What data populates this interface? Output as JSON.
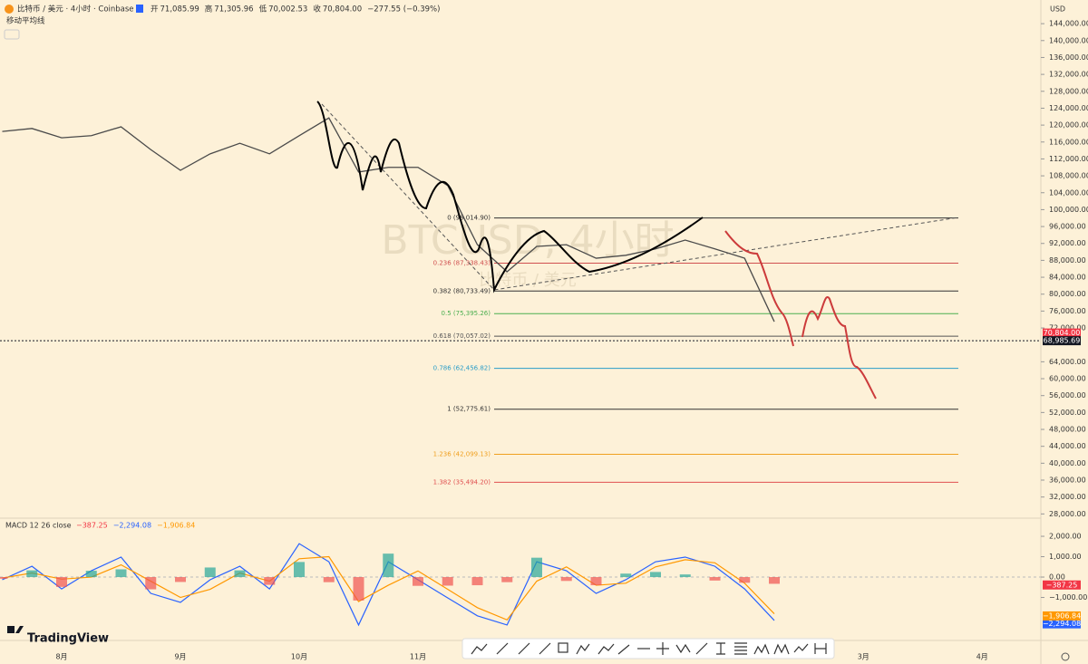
{
  "header": {
    "symbol": "比特币 / 美元 · 4小时 · Coinbase",
    "ohlc": [
      {
        "label": "开",
        "value": "71,085.99"
      },
      {
        "label": "高",
        "value": "71,305.96"
      },
      {
        "label": "低",
        "value": "70,002.53"
      },
      {
        "label": "收",
        "value": "70,804.00"
      }
    ],
    "change": "−277.55 (−0.39%)",
    "indicator": "移动平均线",
    "currency": "USD"
  },
  "watermark": {
    "line1": "BTCUSD, 4小时",
    "line2": "比特币 / 美元"
  },
  "logo": "TradingView",
  "chart_data": [
    {
      "type": "line",
      "color": "#4a4a4a",
      "categories": [
        null,
        null,
        "8月",
        null,
        null,
        null,
        "9月",
        null,
        null,
        null,
        "10月",
        null,
        null,
        null,
        "11月",
        null,
        null,
        null,
        null,
        null,
        null,
        null,
        null,
        null,
        null,
        null,
        null,
        null,
        null,
        "3月",
        null,
        null,
        null,
        "4月",
        null,
        null
      ],
      "values": [
        118500,
        119200,
        117000,
        117500,
        119600,
        114200,
        109300,
        113200,
        115700,
        113200,
        117500,
        121700,
        108900,
        110000,
        110000,
        105700,
        91700,
        85300,
        91300,
        91700,
        88500,
        89200,
        90700,
        92800,
        90700,
        88500,
        73500,
        null,
        null,
        null,
        null,
        null,
        null,
        null,
        null,
        null
      ],
      "ylim": [
        27000,
        149600
      ],
      "yticks": [
        {
          "value": 28000,
          "label": "28,000.00"
        },
        {
          "value": 32000,
          "label": "32,000.00"
        },
        {
          "value": 36000,
          "label": "36,000.00"
        },
        {
          "value": 40000,
          "label": "40,000.00"
        },
        {
          "value": 44000,
          "label": "44,000.00"
        },
        {
          "value": 48000,
          "label": "48,000.00"
        },
        {
          "value": 52000,
          "label": "52,000.00"
        },
        {
          "value": 56000,
          "label": "56,000.00"
        },
        {
          "value": 60000,
          "label": "60,000.00"
        },
        {
          "value": 64000,
          "label": "64,000.00"
        },
        {
          "value": 72000,
          "label": "72,000.00"
        },
        {
          "value": 76000,
          "label": "76,000.00"
        },
        {
          "value": 80000,
          "label": "80,000.00"
        },
        {
          "value": 84000,
          "label": "84,000.00"
        },
        {
          "value": 88000,
          "label": "88,000.00"
        },
        {
          "value": 92000,
          "label": "92,000.00"
        },
        {
          "value": 96000,
          "label": "96,000.00"
        },
        {
          "value": 100000,
          "label": "100,000.00"
        },
        {
          "value": 104000,
          "label": "104,000.00"
        },
        {
          "value": 108000,
          "label": "108,000.00"
        },
        {
          "value": 112000,
          "label": "112,000.00"
        },
        {
          "value": 116000,
          "label": "116,000.00"
        },
        {
          "value": 120000,
          "label": "120,000.00"
        },
        {
          "value": 124000,
          "label": "124,000.00"
        },
        {
          "value": 128000,
          "label": "128,000.00"
        },
        {
          "value": 132000,
          "label": "132,000.00"
        },
        {
          "value": 136000,
          "label": "136,000.00"
        },
        {
          "value": 140000,
          "label": "140,000.00"
        },
        {
          "value": 144000,
          "label": "144,000.00"
        }
      ],
      "fib_levels": [
        {
          "label": "0 (98,014.90)",
          "value": 98014.9,
          "color": "#333333"
        },
        {
          "label": "0.236 (87,338.43)",
          "value": 87338.43,
          "color": "#d05050"
        },
        {
          "label": "0.382 (80,733.49)",
          "value": 80733.49,
          "color": "#333333"
        },
        {
          "label": "0.5 (75,395.26)",
          "value": 75395.26,
          "color": "#4caf50"
        },
        {
          "label": "0.618 (70,057.02)",
          "value": 70057.02,
          "color": "#555555"
        },
        {
          "label": "0.786 (62,456.82)",
          "value": 62456.82,
          "color": "#2a9dc8"
        },
        {
          "label": "1 (52,775.61)",
          "value": 52775.61,
          "color": "#333333"
        },
        {
          "label": "1.236 (42,099.13)",
          "value": 42099.13,
          "color": "#f0a020"
        },
        {
          "label": "1.382 (35,494.20)",
          "value": 35494.2,
          "color": "#e05050"
        }
      ],
      "last_price": {
        "value": 70804,
        "label": "70,804.00",
        "color": "#f23645"
      },
      "marker_price": {
        "value": 68985.69,
        "label": "68,985.69",
        "color": "#131722"
      }
    },
    {
      "type": "macd",
      "title": "MACD 12 26 close",
      "series": [
        {
          "color": "#2962ff",
          "values": [
            -130,
            530,
            -580,
            310,
            980,
            -800,
            -1240,
            -130,
            530,
            -580,
            1640,
            750,
            -2350,
            750,
            -130,
            -1020,
            -1900,
            -2350,
            750,
            310,
            -800,
            -130,
            750,
            980,
            530,
            -580,
            -2130,
            null,
            null,
            null,
            null,
            null,
            null,
            null,
            null,
            null
          ]
        },
        {
          "color": "#ff9800",
          "values": [
            -50,
            200,
            -100,
            0,
            600,
            -200,
            -1000,
            -600,
            200,
            -200,
            900,
            1000,
            -1200,
            -400,
            300,
            -600,
            -1500,
            -2100,
            -200,
            500,
            -400,
            -300,
            500,
            850,
            700,
            -300,
            -1800,
            null,
            null,
            null,
            null,
            null,
            null,
            null,
            null,
            null
          ]
        },
        {
          "color": "#26a69a",
          "color_negative": "#ef5350",
          "values": [
            -80,
            330,
            -480,
            310,
            380,
            -600,
            -240,
            470,
            330,
            -380,
            740,
            -250,
            -1150,
            1150,
            -430,
            -420,
            -400,
            -250,
            950,
            -190,
            -400,
            170,
            250,
            130,
            -170,
            -280,
            -330,
            null,
            null,
            null,
            null,
            null,
            null,
            null,
            null,
            null
          ]
        }
      ],
      "readout": [
        {
          "label": "−387.25",
          "value": -387.25,
          "color": "#f23645"
        },
        {
          "label": "−2,294.08",
          "value": -2294.08,
          "color": "#2962ff"
        },
        {
          "label": "−1,906.84",
          "value": -1906.84,
          "color": "#ff9800"
        }
      ],
      "ylim": [
        -3020,
        2890
      ],
      "yticks": [
        {
          "value": 2000,
          "label": "2,000.00"
        },
        {
          "value": 1000,
          "label": "1,000.00"
        },
        {
          "value": 0,
          "label": "0.00"
        },
        {
          "value": -1000,
          "label": "−1,000.00"
        }
      ]
    }
  ]
}
